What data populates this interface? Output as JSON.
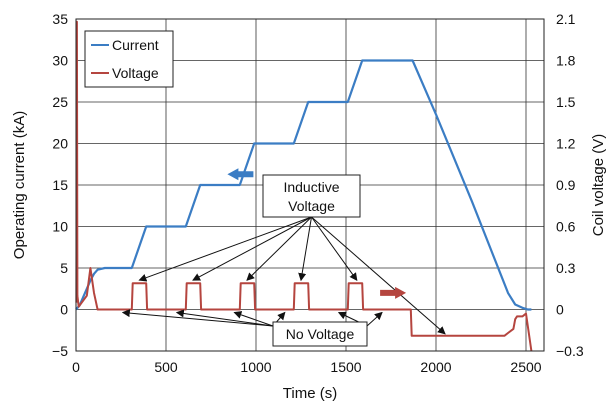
{
  "chart_data": {
    "type": "line",
    "xlabel": "Time (s)",
    "ylabel": "Operating current (kA)",
    "y2label": "Coil voltage (V)",
    "xlim": [
      0,
      2600
    ],
    "ylim": [
      -5,
      35
    ],
    "y2lim": [
      -0.3,
      2.1
    ],
    "x_ticks": [
      0,
      500,
      1000,
      1500,
      2000,
      2500
    ],
    "y_ticks": [
      -5,
      0,
      5,
      10,
      15,
      20,
      25,
      30,
      35
    ],
    "y2_ticks": [
      "−0.3",
      "0",
      "0.3",
      "0.6",
      "0.9",
      "1.2",
      "1.5",
      "1.8",
      "2.1"
    ],
    "y_tick_labels": [
      "−5",
      "0",
      "5",
      "10",
      "15",
      "20",
      "25",
      "30",
      "35"
    ],
    "grid": true,
    "legend": {
      "position": "top-left",
      "entries": [
        "Current",
        "Voltage"
      ]
    },
    "series": [
      {
        "name": "Current",
        "axis": "left",
        "color": "#3b7dc4",
        "x": [
          0,
          20,
          40,
          60,
          80,
          100,
          120,
          160,
          310,
          390,
          610,
          690,
          910,
          990,
          1210,
          1290,
          1510,
          1590,
          1810,
          1870,
          2000,
          2200,
          2400,
          2440,
          2480,
          2510,
          2530
        ],
        "y": [
          0,
          0.5,
          1.5,
          2.5,
          3.5,
          4.3,
          4.8,
          5,
          5,
          10,
          10,
          15,
          15,
          20,
          20,
          25,
          25,
          30,
          30,
          30,
          23.5,
          13,
          2,
          0.6,
          0.2,
          0,
          0
        ]
      },
      {
        "name": "Voltage",
        "axis": "right",
        "color": "#b5453f",
        "x": [
          2,
          5,
          8,
          15,
          60,
          80,
          100,
          120,
          310,
          315,
          390,
          395,
          610,
          615,
          690,
          695,
          910,
          915,
          990,
          995,
          1210,
          1215,
          1290,
          1295,
          1510,
          1515,
          1590,
          1595,
          1860,
          1865,
          2000,
          2380,
          2400,
          2430,
          2440,
          2450,
          2480,
          2500,
          2530
        ],
        "y": [
          0.05,
          2.08,
          0.1,
          0.02,
          0.1,
          0.3,
          0.12,
          0,
          0,
          0.19,
          0.19,
          0,
          0,
          0.19,
          0.19,
          0,
          0,
          0.19,
          0.19,
          0,
          0,
          0.19,
          0.19,
          0,
          0,
          0.19,
          0.19,
          0,
          0,
          -0.19,
          -0.19,
          -0.19,
          -0.17,
          -0.14,
          -0.07,
          -0.05,
          -0.05,
          -0.03,
          -0.3
        ]
      }
    ],
    "annotations": {
      "inductive_label": [
        "Inductive",
        "Voltage"
      ],
      "no_voltage_label": "No Voltage"
    }
  }
}
